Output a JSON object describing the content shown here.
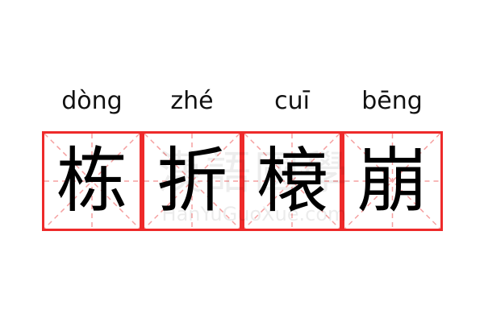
{
  "entries": [
    {
      "pinyin": "dòng",
      "hanzi": "栋"
    },
    {
      "pinyin": "zhé",
      "hanzi": "折"
    },
    {
      "pinyin": "cuī",
      "hanzi": "榱"
    },
    {
      "pinyin": "bēng",
      "hanzi": "崩"
    }
  ],
  "watermark": {
    "logo": "漢語國學",
    "site": "HanYuGuoXue.com"
  },
  "colors": {
    "border": "#ee2a2a",
    "guide": "#f5a0a0",
    "text": "#000000"
  }
}
